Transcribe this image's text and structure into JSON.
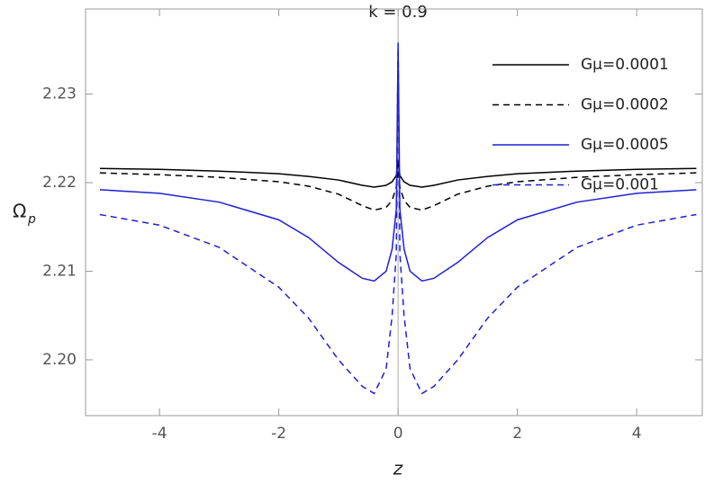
{
  "chart_data": {
    "type": "line",
    "title": "k = 0.9",
    "xlabel": "z",
    "ylabel": "Ω",
    "ylabel_sub": "p",
    "x": [
      -5,
      -4,
      -3,
      -2,
      -1.5,
      -1,
      -0.6,
      -0.4,
      -0.2,
      -0.1,
      -0.03,
      0,
      0.03,
      0.1,
      0.2,
      0.4,
      0.6,
      1,
      1.5,
      2,
      3,
      4,
      5
    ],
    "series": [
      {
        "name": "Gμ=0.0001",
        "color": "#000000",
        "dashed": false,
        "values": [
          2.2216,
          2.2215,
          2.2213,
          2.221,
          2.2207,
          2.2203,
          2.2197,
          2.2195,
          2.2197,
          2.2201,
          2.2208,
          2.2225,
          2.2208,
          2.2201,
          2.2197,
          2.2195,
          2.2197,
          2.2203,
          2.2207,
          2.221,
          2.2213,
          2.2215,
          2.2216
        ]
      },
      {
        "name": "Gμ=0.0002",
        "color": "#000000",
        "dashed": true,
        "values": [
          2.2211,
          2.2209,
          2.2206,
          2.2201,
          2.2196,
          2.2187,
          2.2174,
          2.2169,
          2.2172,
          2.218,
          2.2195,
          2.2215,
          2.2195,
          2.218,
          2.2172,
          2.2169,
          2.2174,
          2.2187,
          2.2196,
          2.2201,
          2.2206,
          2.2209,
          2.2211
        ]
      },
      {
        "name": "Gμ=0.0005",
        "color": "#1f1fd6",
        "dashed": false,
        "values": [
          2.2192,
          2.2188,
          2.2178,
          2.2158,
          2.2138,
          2.211,
          2.2092,
          2.2089,
          2.21,
          2.2125,
          2.217,
          2.2355,
          2.217,
          2.2125,
          2.21,
          2.2089,
          2.2092,
          2.211,
          2.2138,
          2.2158,
          2.2178,
          2.2188,
          2.2192
        ]
      },
      {
        "name": "Gμ=0.001",
        "color": "#1f1fd6",
        "dashed": true,
        "values": [
          2.2164,
          2.2152,
          2.2127,
          2.2082,
          2.2047,
          2.2,
          2.197,
          2.1962,
          2.199,
          2.205,
          2.212,
          2.2358,
          2.212,
          2.205,
          2.199,
          2.1962,
          2.197,
          2.2,
          2.2047,
          2.2082,
          2.2127,
          2.2152,
          2.2164
        ]
      }
    ],
    "xlim": [
      -5.24,
      5.1
    ],
    "ylim": [
      2.1937,
      2.2396
    ],
    "xticks": [
      -4,
      -2,
      0,
      2,
      4
    ],
    "yticks": [
      {
        "value": 2.2,
        "label": "2.20"
      },
      {
        "value": 2.21,
        "label": "2.21"
      },
      {
        "value": 2.22,
        "label": "2.22"
      },
      {
        "value": 2.23,
        "label": "2.23"
      }
    ],
    "legend": "top-right"
  }
}
